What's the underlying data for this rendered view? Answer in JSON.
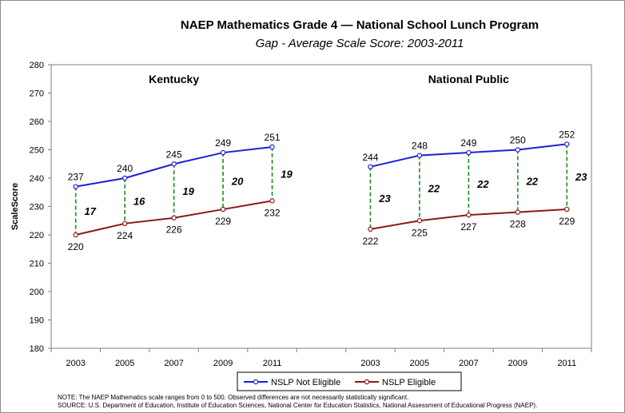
{
  "chart_data": {
    "type": "line",
    "title": "NAEP Mathematics Grade 4 — National School Lunch Program",
    "subtitle": "Gap - Average Scale Score: 2003-2011",
    "ylabel": "ScaleScore",
    "ylim": [
      180,
      280
    ],
    "yticks": [
      "180",
      "190",
      "200",
      "210",
      "220",
      "230",
      "240",
      "250",
      "260",
      "270",
      "280"
    ],
    "grid": false,
    "legend_position": "bottom",
    "colors": {
      "not_eligible": "#1f1fd6",
      "eligible": "#8b1a1a",
      "gap": "#1e8a1e"
    },
    "panels": [
      {
        "name": "Kentucky",
        "x": [
          "2003",
          "2005",
          "2007",
          "2009",
          "2011"
        ],
        "series": [
          {
            "name": "NSLP Not Eligible",
            "values": [
              237,
              240,
              245,
              249,
              251
            ]
          },
          {
            "name": "NSLP Eligible",
            "values": [
              220,
              224,
              226,
              229,
              232
            ]
          }
        ],
        "gaps": [
          "17",
          "16",
          "19",
          "20",
          "19"
        ]
      },
      {
        "name": "National Public",
        "x": [
          "2003",
          "2005",
          "2007",
          "2009",
          "2011"
        ],
        "series": [
          {
            "name": "NSLP Not Eligible",
            "values": [
              244,
              248,
              249,
              250,
              252
            ]
          },
          {
            "name": "NSLP Eligible",
            "values": [
              222,
              225,
              227,
              228,
              229
            ]
          }
        ],
        "gaps": [
          "23",
          "22",
          "22",
          "22",
          "23"
        ]
      }
    ],
    "legend": [
      "NSLP Not Eligible",
      "NSLP Eligible"
    ]
  },
  "notes": [
    "NOTE: The NAEP Mathematics  scale ranges from 0 to 500.  Observed differences  are not necessarily statistically significant.",
    "SOURCE: U.S. Department of Education,  Institute of Education Sciences, National Center for Education Statistics, National Assessment of Educational Progress (NAEP)."
  ]
}
